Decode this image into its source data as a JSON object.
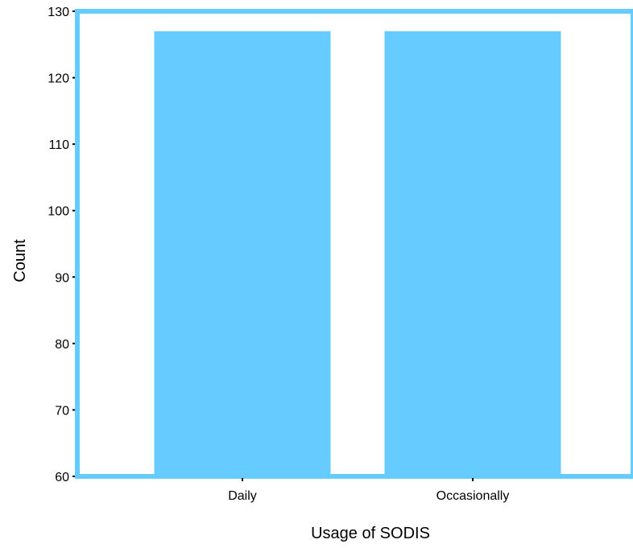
{
  "chart_data": {
    "type": "bar",
    "title": "",
    "xlabel": "Usage of SODIS",
    "ylabel": "Count",
    "categories": [
      "Daily",
      "Occasionally"
    ],
    "values": [
      127,
      127
    ],
    "ylim": [
      60,
      130
    ],
    "yticks": [
      60,
      70,
      80,
      90,
      100,
      110,
      120,
      130
    ],
    "ytick_labels": [
      "60",
      "70",
      "80",
      "90",
      "100",
      "110",
      "120",
      "130"
    ],
    "grid": false,
    "legend": "none",
    "colors": {
      "bar": "#66ccff",
      "frame": "#66ccff",
      "axis": "#000000",
      "background": "#ffffff"
    }
  }
}
